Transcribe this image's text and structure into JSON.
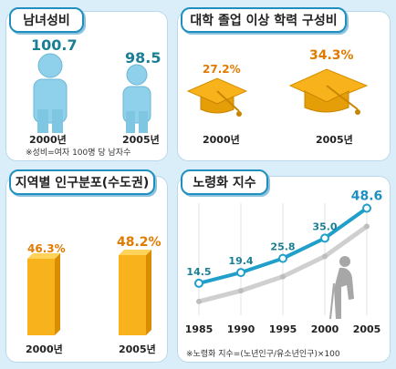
{
  "panels": {
    "sex_ratio": {
      "title": "남녀성비",
      "male_value": "100.7",
      "female_value": "98.5",
      "year_2000": "2000년",
      "year_2005": "2005년",
      "note": "※성비=여자 100명 당 남자수"
    },
    "college": {
      "title": "대학 졸업 이상 학력 구성비",
      "value_2000": "27.2%",
      "value_2005": "34.3%",
      "year_2000": "2000년",
      "year_2005": "2005년"
    },
    "capital": {
      "title": "지역별 인구분포(수도권)",
      "value_2000": "46.3%",
      "value_2005": "48.2%",
      "year_2000": "2000년",
      "year_2005": "2005년"
    },
    "aging": {
      "title": "노령화 지수",
      "note": "※노령화 지수=(노년인구/유소년인구)×100"
    }
  },
  "colors": {
    "background": "#d9eef8",
    "accent_blue": "#1f8fbf",
    "teal_value": "#1a7f95",
    "orange_value": "#e07b00",
    "person_blue": "#8fd0ea",
    "cap_gold": "#f0a500",
    "bar_orange": "#f7b21c",
    "line_primary": "#1f9fc9",
    "line_secondary": "#cfcfcf"
  },
  "chart_data": [
    {
      "type": "bar",
      "title": "남녀성비",
      "categories": [
        "2000년",
        "2005년"
      ],
      "values": [
        100.7,
        98.5
      ],
      "note": "※성비=여자 100명 당 남자수"
    },
    {
      "type": "bar",
      "title": "대학 졸업 이상 학력 구성비",
      "categories": [
        "2000년",
        "2005년"
      ],
      "values": [
        27.2,
        34.3
      ]
    },
    {
      "type": "bar",
      "title": "지역별 인구분포(수도권)",
      "categories": [
        "2000년",
        "2005년"
      ],
      "values": [
        46.3,
        48.2
      ]
    },
    {
      "type": "line",
      "title": "노령화 지수",
      "x": [
        1985,
        1990,
        1995,
        2000,
        2005
      ],
      "x_labels": [
        "1985",
        "1990",
        "1995",
        "2000",
        "2005"
      ],
      "series": [
        {
          "values": [
            14.5,
            19.4,
            25.8,
            35.0,
            48.6
          ],
          "labels": [
            "14.5",
            "19.4",
            "25.8",
            "35.0",
            "48.6"
          ]
        }
      ],
      "note": "※노령화 지수=(노년인구/유소년인구)×100"
    }
  ]
}
